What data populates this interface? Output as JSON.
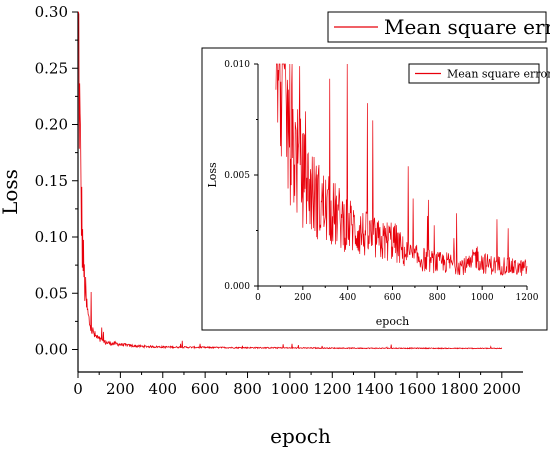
{
  "chart_data": [
    {
      "type": "line",
      "xlabel": "epoch",
      "ylabel": "Loss",
      "xlim": [
        0,
        2100
      ],
      "ylim": [
        -0.02,
        0.3
      ],
      "x_ticks": [
        "0",
        "200",
        "400",
        "600",
        "800",
        "1000",
        "1200",
        "1400",
        "1600",
        "1800",
        "2000"
      ],
      "y_ticks": [
        "0.00",
        "0.05",
        "0.10",
        "0.15",
        "0.20",
        "0.25",
        "0.30"
      ],
      "legend": "top-right",
      "series": [
        {
          "name": "Mean square error",
          "color": "#e8000b",
          "x": [
            0,
            5,
            10,
            15,
            20,
            25,
            30,
            40,
            50,
            60,
            70,
            80,
            100,
            120,
            150,
            200,
            250,
            300,
            400,
            500,
            600,
            700,
            800,
            970,
            1000,
            1200,
            1400,
            1600,
            1800,
            2000
          ],
          "y": [
            0.3,
            0.22,
            0.16,
            0.12,
            0.09,
            0.07,
            0.055,
            0.035,
            0.024,
            0.018,
            0.014,
            0.011,
            0.008,
            0.006,
            0.005,
            0.004,
            0.003,
            0.0025,
            0.002,
            0.0018,
            0.0016,
            0.0015,
            0.0014,
            0.0013,
            0.0012,
            0.0011,
            0.001,
            0.001,
            0.0009,
            0.0009
          ]
        }
      ]
    },
    {
      "type": "line",
      "xlabel": "epoch",
      "ylabel": "Loss",
      "xlim": [
        0,
        1200
      ],
      "ylim": [
        0,
        0.01
      ],
      "x_ticks": [
        "0",
        "200",
        "400",
        "600",
        "800",
        "1000",
        "1200"
      ],
      "y_ticks": [
        "0.000",
        "0.005",
        "0.010"
      ],
      "legend": "top-right",
      "series": [
        {
          "name": "Mean square error",
          "color": "#e8000b",
          "x": [
            80,
            100,
            120,
            150,
            200,
            250,
            300,
            350,
            400,
            450,
            500,
            550,
            600,
            650,
            700,
            750,
            800,
            850,
            900,
            950,
            970,
            1000,
            1050,
            1100,
            1150,
            1200
          ],
          "y": [
            0.01,
            0.0085,
            0.0068,
            0.0055,
            0.0042,
            0.0035,
            0.003,
            0.0027,
            0.0024,
            0.0021,
            0.0019,
            0.0017,
            0.0018,
            0.0013,
            0.0011,
            0.001,
            0.0009,
            0.0009,
            0.0008,
            0.0008,
            0.0012,
            0.0009,
            0.0008,
            0.0008,
            0.0007,
            0.0007
          ]
        }
      ]
    }
  ]
}
